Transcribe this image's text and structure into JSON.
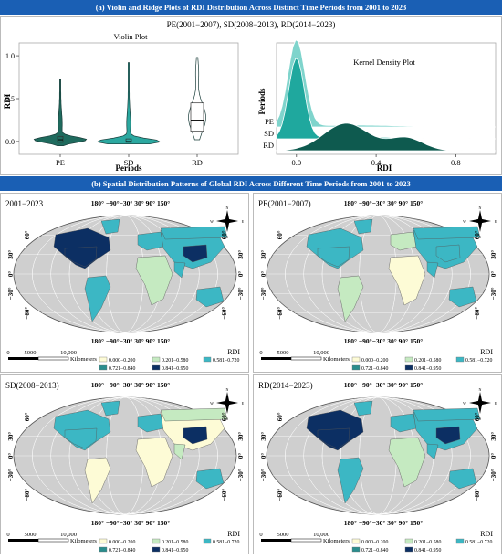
{
  "section_a_title": "(a)  Violin and Ridge Plots of RDI Distribution Across Distinct Time Periods from 2001 to 2023",
  "section_b_title": "(b)  Spatial Distribution Patterns of Global RDI Across Different Time Periods from 2001 to 2023",
  "chart_data": [
    {
      "type": "violin",
      "panel_title": "PE(2001−2007), SD(2008−2013), RD(2014−2023)",
      "title": "Violin Plot",
      "xlabel": "Periods",
      "ylabel": "RDI",
      "categories": [
        "PE",
        "SD",
        "RD"
      ],
      "yticks": [
        "0.0",
        "0.5",
        "1.0"
      ],
      "ylim": [
        -0.15,
        1.15
      ],
      "series": [
        {
          "name": "PE",
          "median": 0.02,
          "q1": -0.01,
          "q3": 0.06,
          "min": -0.05,
          "max": 0.72
        },
        {
          "name": "SD",
          "median": 0.0,
          "q1": -0.01,
          "q3": 0.03,
          "min": -0.03,
          "max": 0.92
        },
        {
          "name": "RD",
          "median": 0.25,
          "q1": 0.12,
          "q3": 0.45,
          "min": 0.02,
          "max": 0.98
        }
      ],
      "colors": {
        "PE": "#1f6b5e",
        "SD": "#2ba8a0",
        "RD": "#ffffff"
      }
    },
    {
      "type": "ridge",
      "title": "Kernel Density Plot",
      "xlabel": "RDI",
      "ylabel": "Periods",
      "categories": [
        "PE",
        "SD",
        "RD"
      ],
      "xticks": [
        "0.0",
        "0.4",
        "0.8"
      ],
      "xlim": [
        -0.1,
        1.0
      ],
      "peaks": {
        "PE": 0.0,
        "SD": 0.0,
        "RD": 0.25
      },
      "colors": {
        "PE": "#7fd4cc",
        "SD": "#1fa89e",
        "RD": "#0e5a4f"
      }
    }
  ],
  "maps": [
    {
      "title": "2001−2023",
      "legend_title": "RDI"
    },
    {
      "title": "PE(2001−2007)",
      "legend_title": "RDI"
    },
    {
      "title": "SD(2008−2013)",
      "legend_title": "RDI"
    },
    {
      "title": "RD(2014−2023)",
      "legend_title": "RDI"
    }
  ],
  "map_common": {
    "top_lon_labels": "180°  −90°−30° 30°  90°  150°",
    "bottom_lon_labels": "180°  −90°−30° 30°  90°  150°",
    "lat_labels_left": [
      "60°",
      "30°",
      "0°",
      "−30°",
      "−60°"
    ],
    "lat_labels_right": [
      "60°",
      "30°",
      "0°",
      "−30°",
      "−60°"
    ],
    "scale_labels": [
      "0",
      "5000",
      "10,000"
    ],
    "scale_unit": "Kilometers",
    "compass": {
      "N": "N",
      "S": "S",
      "E": "E",
      "W": "W"
    },
    "legend": [
      {
        "label": "0.000−0.200",
        "color": "#fdfbd6"
      },
      {
        "label": "0.201−0.580",
        "color": "#c5eac1"
      },
      {
        "label": "0.581−0.720",
        "color": "#3cb7c4"
      },
      {
        "label": "0.721−0.840",
        "color": "#2a8d8d"
      },
      {
        "label": "0.841−0.950",
        "color": "#0c2f63"
      }
    ]
  }
}
